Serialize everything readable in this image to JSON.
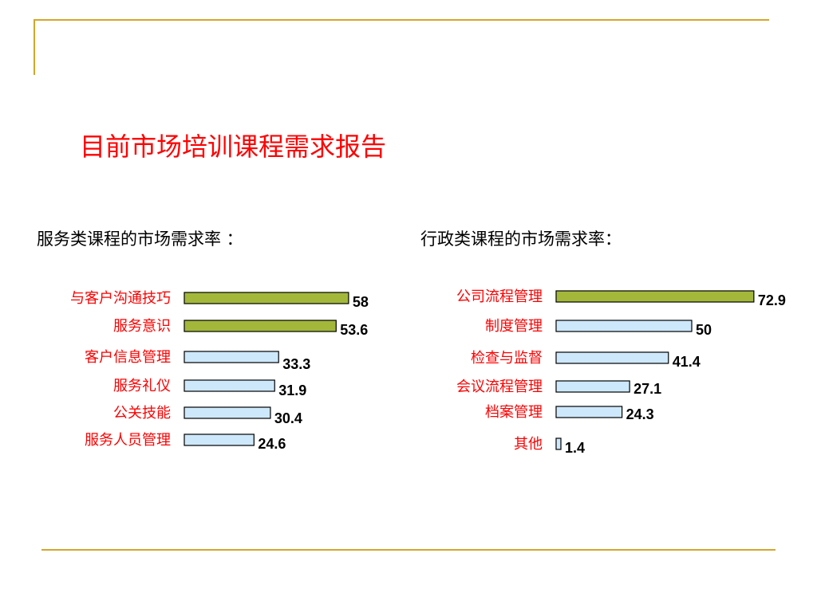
{
  "page": {
    "title": "目前市场培训课程需求报告",
    "colors": {
      "decoration": "#d4a62a",
      "title": "#ff0000",
      "highlight_bar": "#a3b83a",
      "normal_bar": "#cde8fa"
    }
  },
  "chart_data": [
    {
      "type": "bar",
      "orientation": "horizontal",
      "title": "服务类课程的市场需求率 ：",
      "categories": [
        "与客户沟通技巧",
        "服务意识",
        "客户信息管理",
        "服务礼仪",
        "公关技能",
        "服务人员管理"
      ],
      "values": [
        58,
        53.6,
        33.3,
        31.9,
        30.4,
        24.6
      ],
      "highlight": [
        true,
        true,
        false,
        false,
        false,
        false
      ]
    },
    {
      "type": "bar",
      "orientation": "horizontal",
      "title": "行政类课程的市场需求率：",
      "categories": [
        "公司流程管理",
        "制度管理",
        "检查与监督",
        "会议流程管理",
        "档案管理",
        "其他"
      ],
      "values": [
        72.9,
        50,
        41.4,
        27.1,
        24.3,
        1.4
      ],
      "highlight": [
        true,
        false,
        false,
        false,
        false,
        false
      ]
    }
  ]
}
